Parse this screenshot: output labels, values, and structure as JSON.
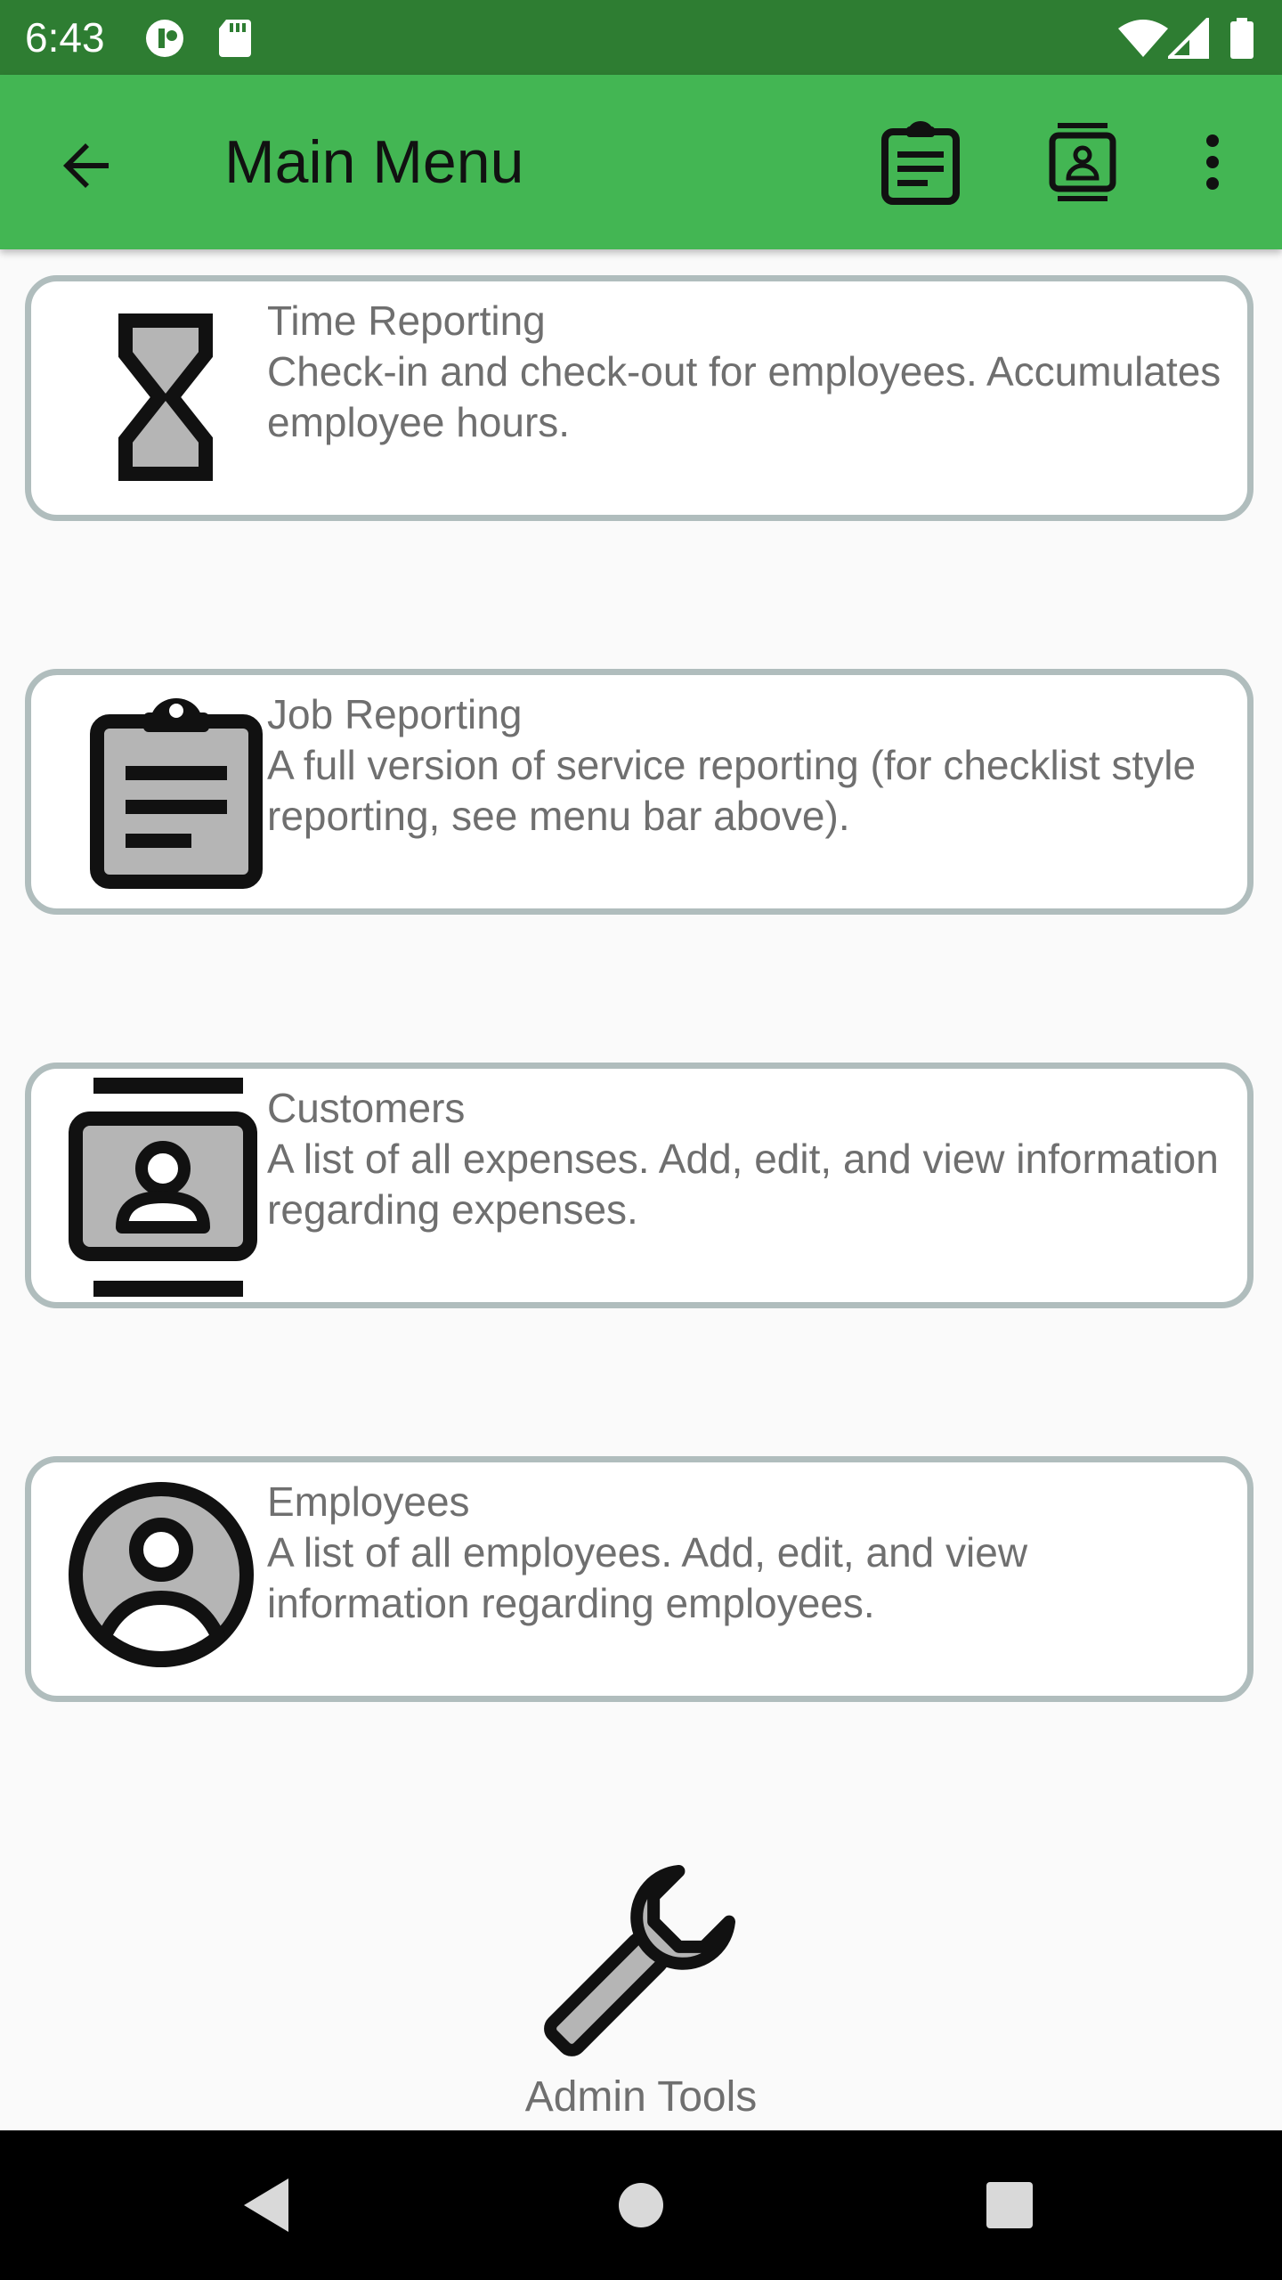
{
  "status_bar": {
    "time": "6:43",
    "icons": [
      "app-notification-icon",
      "sd-card-icon",
      "wifi-icon",
      "signal-icon",
      "battery-icon"
    ]
  },
  "app_bar": {
    "title": "Main Menu",
    "back_icon": "arrow-back-icon",
    "actions": [
      "clipboard-icon",
      "contact-card-icon",
      "more-vert-icon"
    ],
    "background_color": "#43b653"
  },
  "menu_items": [
    {
      "title": "Time Reporting",
      "description": "Check-in and check-out for employees. Accumulates employee hours.",
      "icon": "hourglass-icon"
    },
    {
      "title": "Job Reporting",
      "description": "A full version of service reporting (for checklist style reporting, see menu bar above).",
      "icon": "clipboard-icon"
    },
    {
      "title": "Customers",
      "description": "A list of all expenses. Add, edit, and view information regarding expenses.",
      "icon": "contact-card-icon"
    },
    {
      "title": "Employees",
      "description": "A list of all employees. Add, edit, and view information regarding employees.",
      "icon": "account-circle-icon"
    }
  ],
  "admin_tools": {
    "label": "Admin Tools",
    "icon": "wrench-icon"
  },
  "nav_bar": {
    "buttons": [
      "back-triangle-icon",
      "home-circle-icon",
      "recents-square-icon"
    ]
  },
  "colors": {
    "status_bar": "#2e7d32",
    "app_bar": "#43b653",
    "card_border": "#b0bdbd",
    "text_secondary": "#6f6f6f",
    "icon_fill": "#b5b5b5"
  }
}
